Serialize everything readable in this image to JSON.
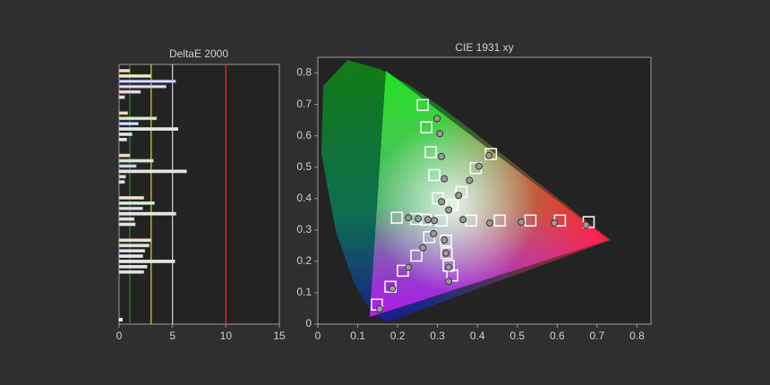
{
  "chart_data": [
    {
      "type": "bar",
      "orientation": "horizontal",
      "title": "DeltaE 2000",
      "categories": [
        null,
        null,
        null,
        null,
        null,
        null,
        null,
        null,
        null,
        null,
        null,
        null,
        null,
        null,
        null,
        null,
        null,
        null,
        null,
        null,
        null,
        null,
        null,
        null,
        null,
        null,
        null,
        null,
        null,
        null,
        null,
        null,
        null,
        null,
        null,
        null,
        null,
        null,
        null,
        null,
        null,
        null,
        null,
        null,
        null,
        null,
        null,
        null
      ],
      "values": [
        1.0,
        3.0,
        5.3,
        4.4,
        2.0,
        0.5,
        null,
        null,
        0.8,
        3.5,
        1.8,
        5.5,
        1.2,
        0.7,
        null,
        null,
        1.0,
        3.2,
        1.6,
        6.3,
        0.6,
        0.5,
        null,
        null,
        2.3,
        3.3,
        2.2,
        5.3,
        1.4,
        1.5,
        null,
        null,
        3.0,
        2.8,
        2.4,
        2.2,
        5.2,
        2.6,
        2.3,
        null,
        null,
        null,
        null,
        null,
        null,
        null,
        null,
        0.3
      ],
      "colors": [
        "#e8a050",
        "#c8d860",
        "#7070e0",
        "#a080d0",
        "#e0a0b0",
        "#d0d0d0",
        null,
        null,
        "#e8a050",
        "#90d070",
        "#8090e0",
        "#d8d8d8",
        "#c0c0e0",
        "#d0d0d0",
        null,
        null,
        "#e8b070",
        "#a0d890",
        "#8090d8",
        "#e0e0e0",
        "#c0c0c0",
        "#d0d0d0",
        null,
        null,
        "#e0c090",
        "#a0d0a0",
        "#a0a0d8",
        "#e0e0e0",
        "#c8c8c8",
        "#d0d0d0",
        null,
        null,
        "#e0c0a0",
        "#c0d0b0",
        "#b0b0d8",
        "#d8d8d8",
        "#e0e0e0",
        "#d0d0d0",
        "#c8c8c8",
        null,
        null,
        null,
        null,
        null,
        null,
        null,
        null,
        "#ffffff"
      ],
      "xlim": [
        0,
        15
      ],
      "xticks": [
        0,
        5,
        10,
        15
      ],
      "reference_lines": [
        {
          "value": 1,
          "color": "#2e8b2e"
        },
        {
          "value": 3,
          "color": "#e0d040"
        },
        {
          "value": 5,
          "color": "#d8d8d8"
        },
        {
          "value": 10,
          "color": "#e03030"
        }
      ]
    },
    {
      "type": "scatter",
      "title": "CIE 1931 xy",
      "xlim": [
        0,
        0.835
      ],
      "ylim": [
        0,
        0.85
      ],
      "xticks": [
        0,
        0.1,
        0.2,
        0.3,
        0.4,
        0.5,
        0.6,
        0.7,
        0.8
      ],
      "yticks": [
        0,
        0.1,
        0.2,
        0.3,
        0.4,
        0.5,
        0.6,
        0.7,
        0.8
      ],
      "series": [
        {
          "marker": "square",
          "color": "#ffffff",
          "x": [
            0.263,
            0.272,
            0.283,
            0.292,
            0.301,
            0.31,
            0.384,
            0.456,
            0.533,
            0.607,
            0.679,
            0.198,
            0.246,
            0.27,
            0.434,
            0.396,
            0.36,
            0.337,
            0.148,
            0.182,
            0.213,
            0.247,
            0.279,
            0.337,
            0.328,
            0.323,
            0.321
          ],
          "values": [
            0.698,
            0.627,
            0.548,
            0.475,
            0.401,
            0.33,
            0.33,
            0.33,
            0.33,
            0.33,
            0.325,
            0.339,
            0.335,
            0.333,
            0.542,
            0.497,
            0.421,
            0.379,
            0.062,
            0.119,
            0.17,
            0.218,
            0.277,
            0.155,
            0.186,
            0.226,
            0.266
          ]
        },
        {
          "marker": "circle",
          "color": "#9a9a9a",
          "x": [
            0.299,
            0.306,
            0.31,
            0.317,
            0.31,
            0.429,
            0.404,
            0.38,
            0.353,
            0.328,
            0.364,
            0.431,
            0.51,
            0.593,
            0.672,
            0.227,
            0.252,
            0.276,
            0.292,
            0.155,
            0.187,
            0.227,
            0.263,
            0.29,
            0.328,
            0.328,
            0.321,
            0.317
          ],
          "values": [
            0.655,
            0.607,
            0.534,
            0.463,
            0.39,
            0.537,
            0.503,
            0.458,
            0.41,
            0.364,
            0.333,
            0.322,
            0.325,
            0.322,
            0.316,
            0.339,
            0.336,
            0.333,
            0.33,
            0.048,
            0.113,
            0.181,
            0.243,
            0.288,
            0.136,
            0.181,
            0.226,
            0.268
          ]
        }
      ]
    }
  ]
}
